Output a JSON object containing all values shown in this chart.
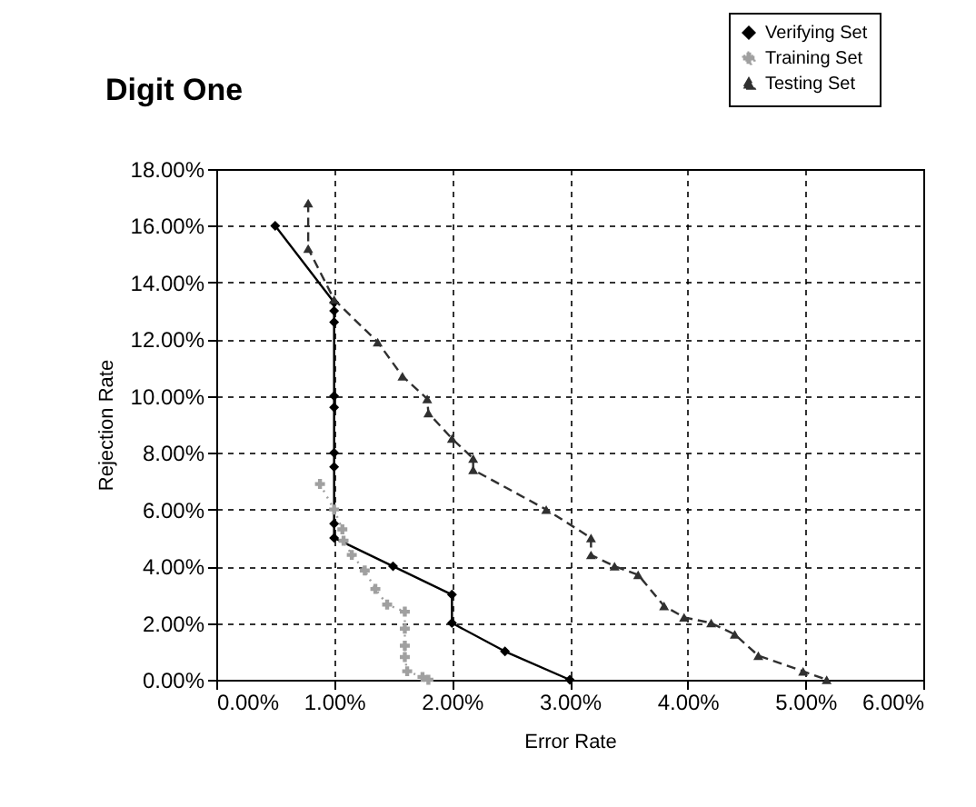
{
  "chart_data": {
    "type": "line",
    "title": "Digit One",
    "xlabel": "Error Rate",
    "ylabel": "Rejection Rate",
    "xlim": [
      0,
      6
    ],
    "ylim": [
      0,
      18
    ],
    "xticks": [
      {
        "value": 0,
        "label": "0.00%"
      },
      {
        "value": 1,
        "label": "1.00%"
      },
      {
        "value": 2,
        "label": "2.00%"
      },
      {
        "value": 3,
        "label": "3.00%"
      },
      {
        "value": 4,
        "label": "4.00%"
      },
      {
        "value": 5,
        "label": "5.00%"
      },
      {
        "value": 6,
        "label": "6.00%"
      }
    ],
    "yticks": [
      {
        "value": 0,
        "label": "0.00%"
      },
      {
        "value": 2,
        "label": "2.00%"
      },
      {
        "value": 4,
        "label": "4.00%"
      },
      {
        "value": 6,
        "label": "6.00%"
      },
      {
        "value": 8,
        "label": "8.00%"
      },
      {
        "value": 10,
        "label": "10.00%"
      },
      {
        "value": 12,
        "label": "12.00%"
      },
      {
        "value": 14,
        "label": "14.00%"
      },
      {
        "value": 16,
        "label": "16.00%"
      },
      {
        "value": 18,
        "label": "18.00%"
      }
    ],
    "grid": true,
    "legend": "top right",
    "series": [
      {
        "name": "Verifying Set",
        "color": "#000000",
        "marker": "diamond",
        "line_style": "solid",
        "x": [
          0.5,
          1.0,
          1.0,
          1.0,
          1.0,
          1.0,
          1.0,
          1.0,
          1.0,
          1.0,
          1.5,
          2.0,
          2.0,
          2.45,
          3.0
        ],
        "values": [
          16,
          13.3,
          13,
          12.6,
          10,
          9.6,
          8,
          7.5,
          5.5,
          5,
          4,
          3,
          2,
          1,
          0
        ]
      },
      {
        "name": "Training Set",
        "color": "#a0a0a0",
        "marker": "cross",
        "line_style": "dotted",
        "x": [
          0.88,
          1.0,
          1.07,
          1.08,
          1.15,
          1.26,
          1.35,
          1.45,
          1.6,
          1.6,
          1.6,
          1.6,
          1.62,
          1.75,
          1.8
        ],
        "values": [
          6.9,
          6.0,
          5.3,
          4.9,
          4.4,
          3.85,
          3.2,
          2.65,
          2.4,
          1.8,
          1.2,
          0.8,
          0.3,
          0.1,
          0
        ]
      },
      {
        "name": "Testing Set",
        "color": "#303030",
        "marker": "triangle",
        "line_style": "dashed",
        "x": [
          0.78,
          0.78,
          1.0,
          1.37,
          1.58,
          1.79,
          1.8,
          2.0,
          2.18,
          2.18,
          2.8,
          3.18,
          3.18,
          3.38,
          3.58,
          3.8,
          3.97,
          4.2,
          4.4,
          4.6,
          4.98,
          5.18
        ],
        "values": [
          16.8,
          15.2,
          13.4,
          11.9,
          10.7,
          9.9,
          9.4,
          8.5,
          7.8,
          7.4,
          6.0,
          5.0,
          4.4,
          4.0,
          3.7,
          2.6,
          2.2,
          2.0,
          1.6,
          0.85,
          0.3,
          0
        ]
      }
    ]
  }
}
